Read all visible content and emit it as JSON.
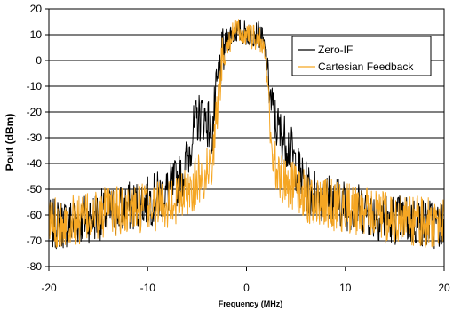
{
  "chart_data": {
    "type": "line",
    "title": "",
    "xlabel": "Frequency (MHz)",
    "ylabel": "Pout (dBm)",
    "xlim": [
      -20,
      20
    ],
    "ylim": [
      -80,
      20
    ],
    "x_ticks": [
      -20,
      -10,
      0,
      10,
      20
    ],
    "y_ticks": [
      20,
      10,
      0,
      -10,
      -20,
      -30,
      -40,
      -50,
      -60,
      -70,
      -80
    ],
    "grid": "horizontal",
    "legend_position": "top-right",
    "colors": {
      "zero_if": "#000000",
      "cartesian": "#F5A623"
    },
    "series": [
      {
        "name": "Zero-IF",
        "x": [
          -20,
          -18,
          -16,
          -14,
          -12,
          -10,
          -8,
          -6.5,
          -6,
          -5.5,
          -5,
          -4.5,
          -4,
          -3.5,
          -3,
          -2.5,
          -2,
          -1.5,
          -1,
          0,
          1,
          1.5,
          2,
          2.5,
          3,
          3.5,
          4,
          4.5,
          5,
          5.5,
          6,
          6.5,
          8,
          10,
          12,
          14,
          16,
          18,
          20
        ],
        "values": [
          -63,
          -62,
          -60,
          -58,
          -56,
          -54,
          -50,
          -44,
          -38,
          -28,
          -22,
          -20,
          -22,
          -28,
          -10,
          2,
          8,
          11,
          12,
          11,
          11,
          10,
          2,
          -16,
          -24,
          -28,
          -30,
          -34,
          -40,
          -44,
          -48,
          -50,
          -52,
          -55,
          -57,
          -60,
          -61,
          -62,
          -63
        ]
      },
      {
        "name": "Cartesian Feedback",
        "x": [
          -20,
          -18,
          -16,
          -14,
          -12,
          -10,
          -8,
          -6.5,
          -6,
          -5.5,
          -5,
          -4.5,
          -4,
          -3.5,
          -3,
          -2.5,
          -2,
          -1.5,
          -1,
          0,
          1,
          1.5,
          2,
          2.5,
          3,
          3.5,
          4,
          4.5,
          5,
          5.5,
          6,
          6.5,
          8,
          10,
          12,
          14,
          16,
          18,
          20
        ],
        "values": [
          -62,
          -61,
          -60,
          -58,
          -57,
          -56,
          -54,
          -52,
          -50,
          -48,
          -46,
          -44,
          -42,
          -38,
          -20,
          0,
          6,
          10,
          12,
          10,
          9,
          8,
          0,
          -30,
          -42,
          -45,
          -46,
          -47,
          -48,
          -50,
          -52,
          -53,
          -55,
          -56,
          -58,
          -60,
          -61,
          -62,
          -62
        ]
      }
    ]
  }
}
